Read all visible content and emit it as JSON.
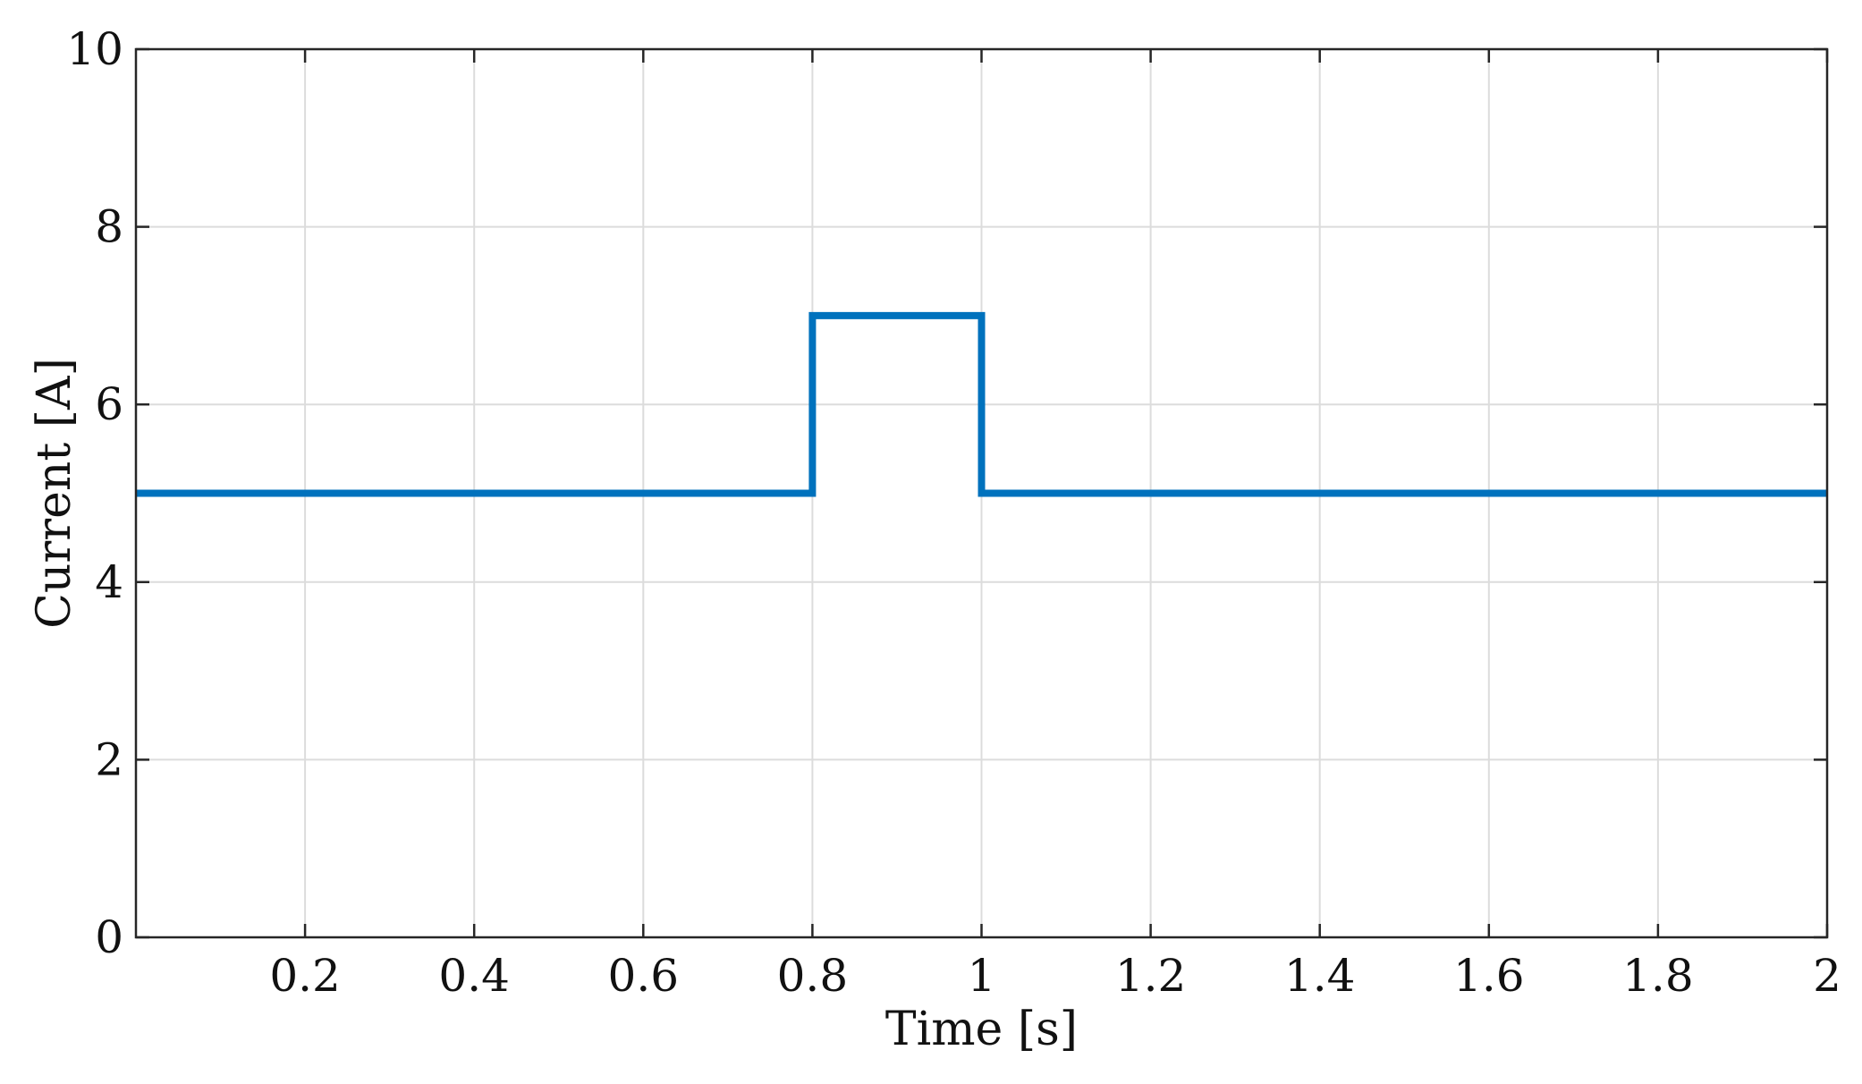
{
  "chart_data": {
    "type": "line",
    "xlabel": "Time [s]",
    "ylabel": "Current [A]",
    "xlim": [
      0,
      2
    ],
    "ylim": [
      0,
      10
    ],
    "x_ticks": [
      0.2,
      0.4,
      0.6,
      0.8,
      1,
      1.2,
      1.4,
      1.6,
      1.8,
      2
    ],
    "x_tick_labels": [
      "0.2",
      "0.4",
      "0.6",
      "0.8",
      "1",
      "1.2",
      "1.4",
      "1.6",
      "1.8",
      "2"
    ],
    "y_ticks": [
      0,
      2,
      4,
      6,
      8,
      10
    ],
    "y_tick_labels": [
      "0",
      "2",
      "4",
      "6",
      "8",
      "10"
    ],
    "grid": true,
    "series": [
      {
        "color": "#0072BD",
        "x": [
          0,
          0.8,
          0.8,
          1,
          1,
          2
        ],
        "y": [
          5,
          5,
          7,
          7,
          5,
          5
        ]
      }
    ]
  }
}
